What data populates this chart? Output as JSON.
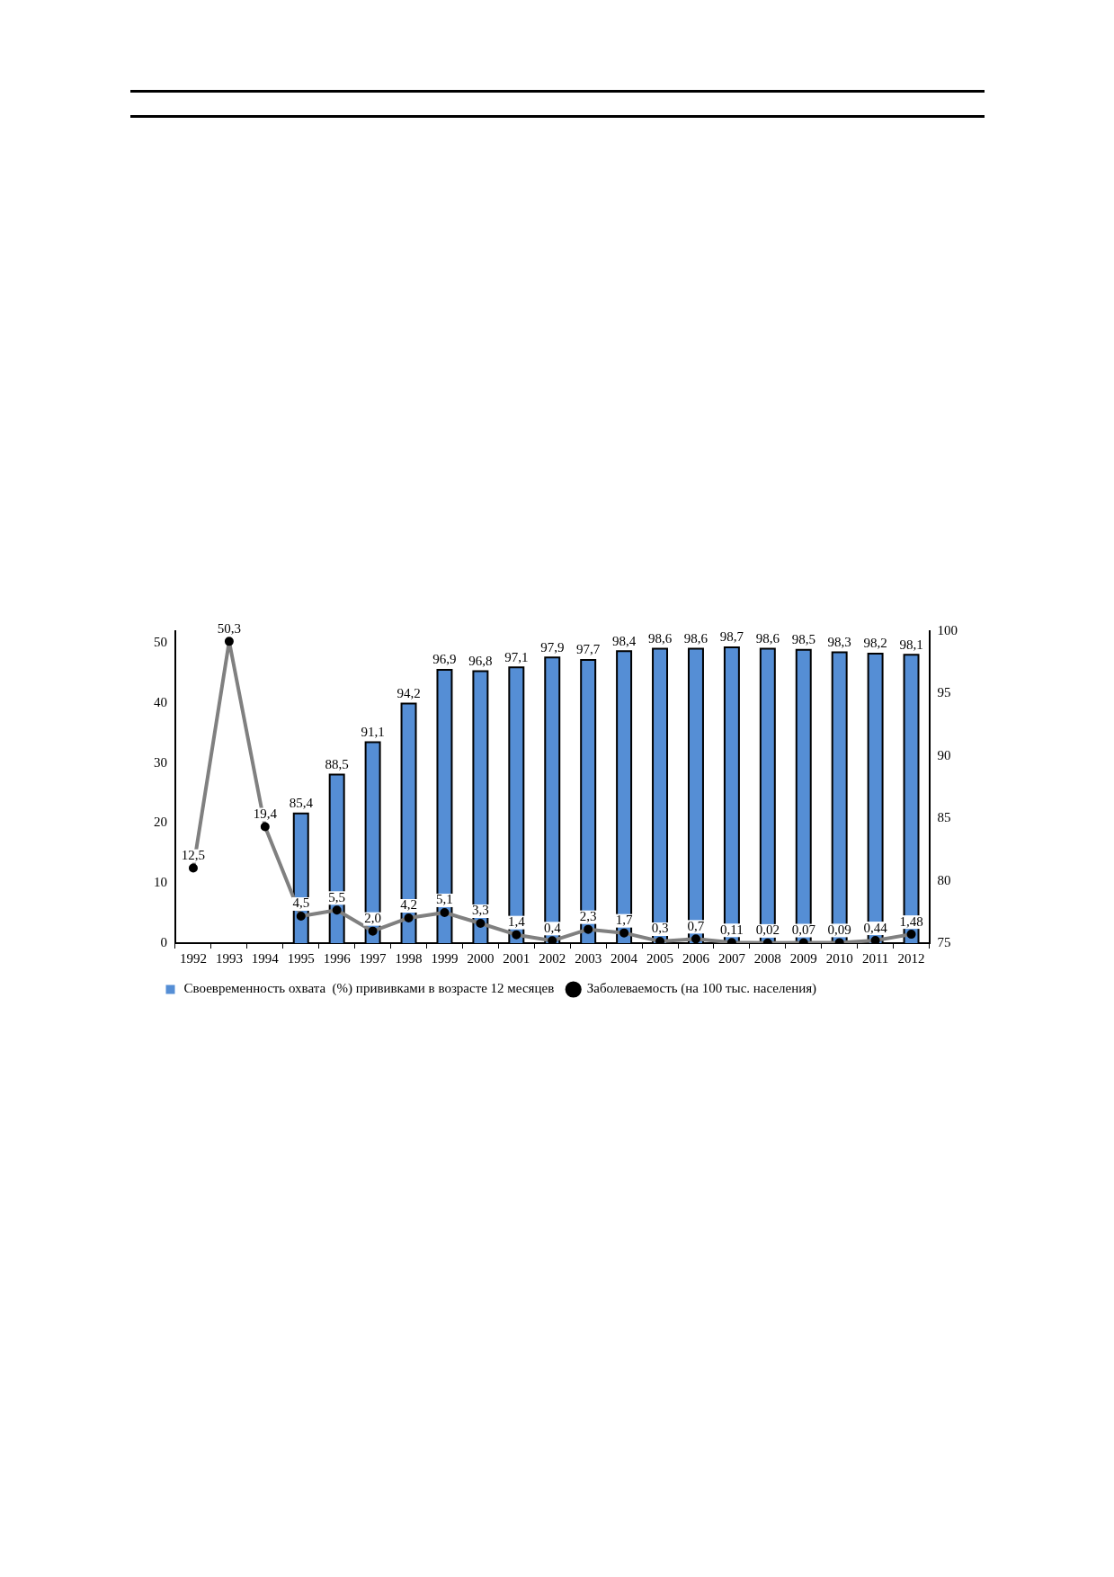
{
  "chart_data": {
    "type": "bar",
    "categories": [
      "1992",
      "1993",
      "1994",
      "1995",
      "1996",
      "1997",
      "1998",
      "1999",
      "2000",
      "2001",
      "2002",
      "2003",
      "2004",
      "2005",
      "2006",
      "2007",
      "2008",
      "2009",
      "2010",
      "2011",
      "2012"
    ],
    "series": [
      {
        "name": "Своевременность охвата  (%) прививками в возрасте 12 месяцев",
        "axis": "y2",
        "color": "#558ed5",
        "values": [
          null,
          null,
          null,
          85.4,
          88.5,
          91.1,
          94.2,
          96.9,
          96.8,
          97.1,
          97.9,
          97.7,
          98.4,
          98.6,
          98.6,
          98.7,
          98.6,
          98.5,
          98.3,
          98.2,
          98.1
        ],
        "value_labels": [
          null,
          null,
          null,
          "85,4",
          "88,5",
          "91,1",
          "94,2",
          "96,9",
          "96,8",
          "97,1",
          "97,9",
          "97,7",
          "98,4",
          "98,6",
          "98,6",
          "98,7",
          "98,6",
          "98,5",
          "98,3",
          "98,2",
          "98,1"
        ]
      },
      {
        "name": "Заболеваемость (на 100 тыс. населения)",
        "type": "line",
        "axis": "y",
        "color": "#808080",
        "marker": "circle",
        "values": [
          12.5,
          50.3,
          19.4,
          4.5,
          5.5,
          2.0,
          4.2,
          5.1,
          3.3,
          1.4,
          0.4,
          2.3,
          1.7,
          0.3,
          0.7,
          0.11,
          0.02,
          0.07,
          0.09,
          0.44,
          1.48
        ],
        "value_labels": [
          "12,5",
          "50,3",
          "19,4",
          "4,5",
          "5,5",
          "2,0",
          "4,2",
          "5,1",
          "3,3",
          "1,4",
          "0,4",
          "2,3",
          "1,7",
          "0,3",
          "0,7",
          "0,11",
          "0,02",
          "0,07",
          "0,09",
          "0,44",
          "1,48"
        ]
      }
    ],
    "ylim": [
      0,
      52
    ],
    "yticks": [
      0,
      10,
      20,
      30,
      40,
      50
    ],
    "y2lim": [
      75,
      100
    ],
    "y2ticks": [
      75,
      80,
      85,
      90,
      95,
      100
    ],
    "grid": false,
    "legend": "bottom"
  }
}
